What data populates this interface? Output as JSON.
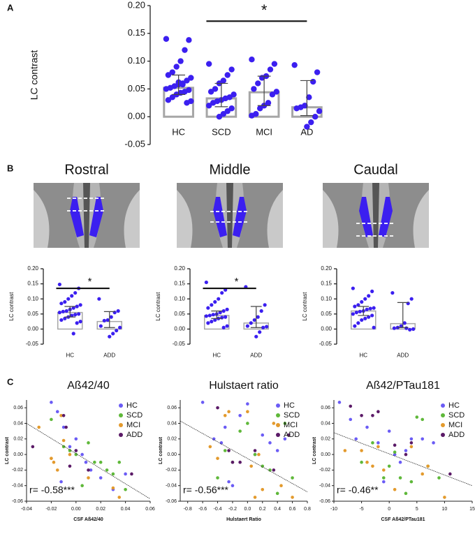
{
  "panel_labels": [
    "A",
    "B",
    "C"
  ],
  "chart_data": [
    {
      "type": "bar_scatter",
      "ylabel": "LC contrast",
      "categories": [
        "HC",
        "SCD",
        "MCI",
        "AD"
      ],
      "values": [
        0.052,
        0.033,
        0.044,
        0.017
      ],
      "intervals": [
        [
          0.04,
          0.075
        ],
        [
          0.018,
          0.06
        ],
        [
          0.02,
          0.073
        ],
        [
          0.002,
          0.065
        ]
      ],
      "points": [
        [
          0.14,
          0.138,
          0.12,
          0.1,
          0.09,
          0.08,
          0.075,
          0.07,
          0.065,
          0.06,
          0.058,
          0.055,
          0.052,
          0.05,
          0.048,
          0.045,
          0.043,
          0.04,
          0.035,
          0.03,
          0.028,
          0.025,
          0.058,
          0.062
        ],
        [
          0.095,
          0.085,
          0.075,
          0.065,
          0.06,
          0.05,
          0.045,
          0.04,
          0.035,
          0.033,
          0.03,
          0.028,
          0.025,
          0.02,
          0.015,
          0.01,
          0.005,
          0.0
        ],
        [
          0.103,
          0.095,
          0.085,
          0.073,
          0.07,
          0.06,
          0.05,
          0.045,
          0.04,
          0.025,
          0.02,
          0.015,
          0.005,
          0.002
        ],
        [
          0.093,
          0.08,
          0.063,
          0.035,
          0.02,
          0.017,
          0.015,
          0.01,
          0.0,
          -0.01,
          -0.018
        ]
      ],
      "bar_color": "#a6a6a6",
      "point_color": "#3b1ff0",
      "ylim": [
        -0.05,
        0.2
      ],
      "yticks": [
        {
          "value": -0.05,
          "label": "-0.05"
        },
        {
          "value": 0,
          "label": "0.00"
        },
        {
          "value": 0.05,
          "label": "0.05"
        },
        {
          "value": 0.1,
          "label": "0.10"
        },
        {
          "value": 0.15,
          "label": "0.15"
        },
        {
          "value": 0.2,
          "label": "0.20"
        }
      ],
      "significance": {
        "text": "*",
        "between": [
          1,
          3
        ],
        "y": 0.172
      }
    },
    {
      "type": "bar_scatter",
      "title": "Rostral",
      "ylabel": "LC contrast",
      "categories": [
        "HC",
        "ADD"
      ],
      "values": [
        0.055,
        0.025
      ],
      "intervals": [
        [
          0.04,
          0.075
        ],
        [
          0.005,
          0.058
        ]
      ],
      "points": [
        [
          0.148,
          0.135,
          0.12,
          0.11,
          0.1,
          0.09,
          0.085,
          0.08,
          0.075,
          0.07,
          0.065,
          0.06,
          0.058,
          0.055,
          0.05,
          0.048,
          0.045,
          0.04,
          0.035,
          0.03,
          0.025,
          0.02,
          -0.015
        ],
        [
          0.1,
          0.06,
          0.055,
          0.04,
          0.03,
          0.028,
          0.01,
          0.005,
          -0.005,
          -0.015,
          -0.025
        ]
      ],
      "bar_color": "#a6a6a6",
      "point_color": "#3b1ff0",
      "ylim": [
        -0.05,
        0.2
      ],
      "yticks": [
        {
          "value": -0.05,
          "label": "-0.05"
        },
        {
          "value": 0,
          "label": "0.00"
        },
        {
          "value": 0.05,
          "label": "0.05"
        },
        {
          "value": 0.1,
          "label": "0.10"
        },
        {
          "value": 0.15,
          "label": "0.15"
        },
        {
          "value": 0.2,
          "label": "0.20"
        }
      ],
      "significance": {
        "text": "*",
        "between": [
          0,
          1
        ],
        "y": 0.135
      }
    },
    {
      "type": "bar_scatter",
      "title": "Middle",
      "ylabel": "LC contrast",
      "categories": [
        "HC",
        "ADD"
      ],
      "values": [
        0.045,
        0.02
      ],
      "intervals": [
        [
          0.035,
          0.06
        ],
        [
          0.005,
          0.075
        ]
      ],
      "points": [
        [
          0.155,
          0.13,
          0.12,
          0.1,
          0.09,
          0.08,
          0.07,
          0.065,
          0.06,
          0.055,
          0.05,
          0.048,
          0.045,
          0.043,
          0.04,
          0.038,
          0.035,
          0.03,
          0.025,
          0.02,
          0.01,
          0.005
        ],
        [
          0.14,
          0.08,
          0.06,
          0.04,
          0.03,
          0.02,
          0.01,
          0.008,
          0.005,
          -0.01,
          -0.025
        ]
      ],
      "bar_color": "#a6a6a6",
      "point_color": "#3b1ff0",
      "ylim": [
        -0.05,
        0.2
      ],
      "yticks": [
        {
          "value": -0.05,
          "label": "-0.05"
        },
        {
          "value": 0,
          "label": "0.00"
        },
        {
          "value": 0.05,
          "label": "0.05"
        },
        {
          "value": 0.1,
          "label": "0.10"
        },
        {
          "value": 0.15,
          "label": "0.15"
        },
        {
          "value": 0.2,
          "label": "0.20"
        }
      ],
      "significance": {
        "text": "*",
        "between": [
          0,
          1
        ],
        "y": 0.135
      }
    },
    {
      "type": "bar_scatter",
      "title": "Caudal",
      "ylabel": "LC contrast",
      "categories": [
        "HC",
        "ADD"
      ],
      "values": [
        0.06,
        0.018
      ],
      "intervals": [
        [
          0.045,
          0.075
        ],
        [
          0.005,
          0.088
        ]
      ],
      "points": [
        [
          0.135,
          0.125,
          0.11,
          0.1,
          0.09,
          0.08,
          0.075,
          0.07,
          0.068,
          0.065,
          0.06,
          0.058,
          0.055,
          0.05,
          0.045,
          0.04,
          0.035,
          0.03,
          0.02,
          0.01,
          0.005
        ],
        [
          0.12,
          0.1,
          0.085,
          0.02,
          0.01,
          0.005,
          0.003,
          0.0,
          -0.002,
          0.003
        ]
      ],
      "bar_color": "#a6a6a6",
      "point_color": "#3b1ff0",
      "ylim": [
        -0.05,
        0.2
      ],
      "yticks": [
        {
          "value": -0.05,
          "label": "-0.05"
        },
        {
          "value": 0,
          "label": "0.00"
        },
        {
          "value": 0.05,
          "label": "0.05"
        },
        {
          "value": 0.1,
          "label": "0.10"
        },
        {
          "value": 0.15,
          "label": "0.15"
        },
        {
          "value": 0.2,
          "label": "0.20"
        }
      ]
    },
    {
      "type": "scatter",
      "title": "Aß42/40",
      "xlabel": "CSF Aß42/40",
      "ylabel": "LC contrast",
      "annotation": "r= -0.58***",
      "legend": "upper right",
      "xlim": [
        -0.04,
        0.06
      ],
      "xticks": [
        {
          "value": -0.04,
          "label": "-0.04"
        },
        {
          "value": -0.02,
          "label": "-0.02"
        },
        {
          "value": 0,
          "label": "0.00"
        },
        {
          "value": 0.02,
          "label": "0.02"
        },
        {
          "value": 0.04,
          "label": "0.04"
        },
        {
          "value": 0.06,
          "label": "0.06"
        }
      ],
      "ylim": [
        -0.06,
        0.07
      ],
      "yticks": [
        {
          "value": -0.06,
          "label": "-0.06"
        },
        {
          "value": -0.04,
          "label": "-0.04"
        },
        {
          "value": -0.02,
          "label": "-0.02"
        },
        {
          "value": 0,
          "label": "0.00"
        },
        {
          "value": 0.02,
          "label": "0.02"
        },
        {
          "value": 0.04,
          "label": "0.04"
        },
        {
          "value": 0.06,
          "label": "0.06"
        }
      ],
      "series": [
        {
          "name": "HC",
          "color": "#6b5cf5",
          "x": [
            -0.02,
            -0.015,
            -0.01,
            0.0,
            0.005,
            0.008,
            0.012,
            -0.005,
            0.02,
            0.03,
            0.04,
            -0.012,
            0.0
          ],
          "values": [
            0.067,
            0.055,
            0.035,
            0.02,
            0.0,
            -0.01,
            -0.02,
            0.01,
            -0.03,
            -0.045,
            -0.025,
            -0.035,
            0.005
          ]
        },
        {
          "name": "SCD",
          "color": "#5fb83a",
          "x": [
            -0.02,
            -0.01,
            0.0,
            0.005,
            0.01,
            0.015,
            0.02,
            0.025,
            0.03,
            0.035,
            0.04,
            -0.005
          ],
          "values": [
            0.045,
            0.01,
            0.0,
            -0.04,
            0.015,
            -0.01,
            -0.01,
            -0.02,
            -0.025,
            -0.01,
            -0.045,
            0.005
          ]
        },
        {
          "name": "MCI",
          "color": "#e39a2d",
          "x": [
            -0.03,
            -0.02,
            -0.018,
            -0.012,
            -0.01,
            -0.015,
            0.01,
            0.03,
            0.035,
            -0.005,
            -0.02
          ],
          "values": [
            0.035,
            -0.005,
            -0.01,
            0.05,
            0.018,
            -0.02,
            -0.03,
            -0.043,
            -0.055,
            0.0,
            -0.005
          ]
        },
        {
          "name": "ADD",
          "color": "#5b1a67",
          "x": [
            -0.035,
            -0.01,
            -0.008,
            -0.005,
            0.0,
            0.01,
            0.045
          ],
          "values": [
            0.01,
            0.05,
            0.035,
            -0.015,
            0.005,
            -0.02,
            -0.025
          ]
        }
      ],
      "trend": {
        "x": [
          -0.04,
          0.06
        ],
        "values": [
          0.04,
          -0.057
        ]
      }
    },
    {
      "type": "scatter",
      "title": "Hulstaert ratio",
      "xlabel": "Hulstaert Ratio",
      "ylabel": "LC contrast",
      "annotation": "r= -0.56***",
      "legend": "upper right",
      "xlim": [
        -0.9,
        0.8
      ],
      "xticks": [
        -0.8,
        -0.6,
        -0.4,
        -0.2,
        {
          "value": 0,
          "label": "0.0"
        },
        0.2,
        0.4,
        0.6,
        0.8
      ],
      "ylim": [
        -0.06,
        0.07
      ],
      "yticks": [
        {
          "value": -0.06,
          "label": "-0.06"
        },
        {
          "value": -0.04,
          "label": "-0.04"
        },
        {
          "value": -0.02,
          "label": "-0.02"
        },
        {
          "value": 0,
          "label": "0.00"
        },
        {
          "value": 0.02,
          "label": "0.02"
        },
        {
          "value": 0.04,
          "label": "0.04"
        },
        {
          "value": 0.06,
          "label": "0.06"
        }
      ],
      "series": [
        {
          "name": "HC",
          "color": "#6b5cf5",
          "x": [
            -0.6,
            -0.45,
            -0.35,
            -0.3,
            -0.2,
            -0.1,
            0.0,
            0.1,
            0.2,
            0.3,
            0.4,
            0.5,
            -0.25
          ],
          "values": [
            0.067,
            0.02,
            0.015,
            0.035,
            -0.04,
            0.05,
            0.065,
            0.0,
            0.025,
            0.015,
            0.005,
            0.02,
            -0.035
          ]
        },
        {
          "name": "SCD",
          "color": "#5fb83a",
          "x": [
            -0.4,
            -0.3,
            -0.2,
            0.0,
            0.1,
            0.2,
            0.3,
            0.4,
            0.5,
            0.6,
            -0.1
          ],
          "values": [
            -0.03,
            0.005,
            -0.01,
            0.04,
            0.0,
            -0.015,
            -0.02,
            -0.05,
            0.04,
            -0.03,
            0.03
          ]
        },
        {
          "name": "MCI",
          "color": "#e39a2d",
          "x": [
            -0.5,
            -0.4,
            -0.3,
            -0.25,
            0.0,
            0.05,
            0.15,
            0.2,
            0.35,
            0.45,
            0.6,
            0.1
          ],
          "values": [
            0.01,
            -0.005,
            0.05,
            0.055,
            0.055,
            -0.015,
            0.0,
            -0.045,
            0.04,
            -0.04,
            -0.055,
            -0.055
          ]
        },
        {
          "name": "ADD",
          "color": "#5b1a67",
          "x": [
            -0.4,
            -0.25,
            -0.2,
            -0.1,
            0.1,
            0.35,
            0.55
          ],
          "values": [
            0.06,
            0.005,
            -0.01,
            -0.01,
            0.005,
            -0.02,
            0.025
          ]
        }
      ],
      "trend": {
        "x": [
          -0.9,
          0.8
        ],
        "values": [
          0.043,
          -0.048
        ]
      }
    },
    {
      "type": "scatter",
      "title": "Aß42/PTau181",
      "xlabel": "CSF Aß42/PTau181",
      "ylabel": "LC contrast",
      "annotation": "r= -0.46**",
      "legend": "upper right",
      "xlim": [
        -10,
        15
      ],
      "xticks": [
        -10,
        -5,
        0,
        5,
        10,
        15
      ],
      "ylim": [
        -0.06,
        0.07
      ],
      "yticks": [
        {
          "value": -0.06,
          "label": "-0.06"
        },
        {
          "value": -0.04,
          "label": "-0.04"
        },
        {
          "value": -0.02,
          "label": "-0.02"
        },
        {
          "value": 0,
          "label": "0.00"
        },
        {
          "value": 0.02,
          "label": "0.02"
        },
        {
          "value": 0.04,
          "label": "0.04"
        },
        {
          "value": 0.06,
          "label": "0.06"
        }
      ],
      "series": [
        {
          "name": "HC",
          "color": "#6b5cf5",
          "x": [
            -9,
            -7,
            -6,
            -4,
            -2,
            0,
            1,
            3,
            4,
            6,
            8,
            -1,
            2
          ],
          "values": [
            0.067,
            0.045,
            0.02,
            0.035,
            0.015,
            0.03,
            0.0,
            0.005,
            0.02,
            0.02,
            0.015,
            -0.035,
            -0.01
          ]
        },
        {
          "name": "SCD",
          "color": "#5fb83a",
          "x": [
            -5,
            -3,
            -1,
            0,
            2,
            3,
            4,
            5,
            6,
            7,
            9,
            1
          ],
          "values": [
            -0.01,
            0.015,
            -0.03,
            -0.015,
            -0.03,
            -0.05,
            -0.035,
            0.048,
            0.045,
            -0.015,
            -0.03,
            0.003
          ]
        },
        {
          "name": "MCI",
          "color": "#e39a2d",
          "x": [
            -8,
            -5,
            -4,
            -3,
            -2,
            -1,
            1,
            4,
            6,
            7,
            10
          ],
          "values": [
            0.005,
            0.005,
            -0.01,
            -0.015,
            0.01,
            -0.02,
            -0.045,
            0.01,
            -0.025,
            -0.015,
            -0.055
          ]
        },
        {
          "name": "ADD",
          "color": "#5b1a67",
          "x": [
            -7,
            -5,
            -3,
            1,
            3,
            4,
            11,
            -2
          ],
          "values": [
            0.062,
            0.05,
            0.05,
            0.012,
            0.0,
            0.015,
            -0.025,
            0.055
          ]
        }
      ],
      "trend": {
        "x": [
          -10,
          15
        ],
        "values": [
          0.028,
          -0.04
        ]
      }
    }
  ]
}
